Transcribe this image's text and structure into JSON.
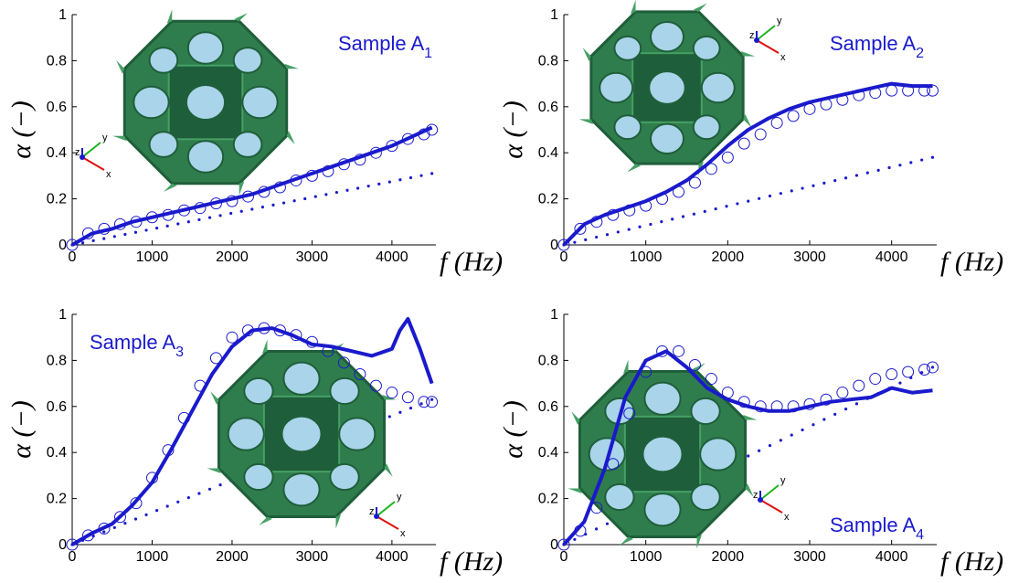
{
  "figure": {
    "x_tick_labels": [
      "0",
      "1000",
      "2000",
      "3000",
      "4000"
    ],
    "y_tick_labels": [
      "0",
      "0.2",
      "0.4",
      "0.6",
      "0.8",
      "1"
    ],
    "ylabel": "α (−)",
    "xlabel": "f (Hz)",
    "triad_labels": {
      "x": "x",
      "y": "y",
      "z": "z"
    }
  },
  "colors": {
    "series": "#1a1acc",
    "shell_dark": "#1f5e3a",
    "shell_mid": "#2f7d4c",
    "shell_light": "#46a064",
    "pores": "#a9d4ea"
  },
  "chart_data": [
    {
      "type": "line",
      "panel": "top-left",
      "sample_label": "Sample A",
      "sample_subscript": "1",
      "xlim": [
        0,
        4550
      ],
      "ylim": [
        0,
        1
      ],
      "grid": false,
      "series": [
        {
          "style": "line",
          "x": [
            0,
            250,
            500,
            750,
            1000,
            1250,
            1500,
            1750,
            2000,
            2250,
            2500,
            2750,
            3000,
            3250,
            3500,
            3750,
            4000,
            4250,
            4500
          ],
          "y": [
            0,
            0.05,
            0.07,
            0.1,
            0.12,
            0.14,
            0.16,
            0.18,
            0.2,
            0.22,
            0.25,
            0.28,
            0.31,
            0.34,
            0.37,
            0.4,
            0.43,
            0.47,
            0.51
          ]
        },
        {
          "style": "circles",
          "x": [
            0,
            200,
            400,
            600,
            800,
            1000,
            1200,
            1400,
            1600,
            1800,
            2000,
            2200,
            2400,
            2600,
            2800,
            3000,
            3200,
            3400,
            3600,
            3800,
            4000,
            4200,
            4400,
            4500
          ],
          "y": [
            0,
            0.05,
            0.07,
            0.09,
            0.1,
            0.12,
            0.13,
            0.15,
            0.16,
            0.18,
            0.19,
            0.21,
            0.23,
            0.25,
            0.28,
            0.3,
            0.32,
            0.35,
            0.37,
            0.4,
            0.43,
            0.46,
            0.48,
            0.5
          ]
        },
        {
          "style": "dots",
          "x": [
            0,
            4500
          ],
          "y": [
            0,
            0.31
          ]
        }
      ]
    },
    {
      "type": "line",
      "panel": "top-right",
      "sample_label": "Sample A",
      "sample_subscript": "2",
      "xlim": [
        0,
        4550
      ],
      "ylim": [
        0,
        1
      ],
      "grid": false,
      "series": [
        {
          "style": "line",
          "x": [
            0,
            250,
            500,
            750,
            1000,
            1250,
            1500,
            1750,
            2000,
            2250,
            2500,
            2750,
            3000,
            3250,
            3500,
            3750,
            4000,
            4250,
            4500
          ],
          "y": [
            0,
            0.09,
            0.13,
            0.16,
            0.19,
            0.23,
            0.28,
            0.35,
            0.43,
            0.5,
            0.55,
            0.59,
            0.62,
            0.64,
            0.66,
            0.68,
            0.7,
            0.69,
            0.69
          ]
        },
        {
          "style": "circles",
          "x": [
            0,
            200,
            400,
            600,
            800,
            1000,
            1200,
            1400,
            1600,
            1800,
            2000,
            2200,
            2400,
            2600,
            2800,
            3000,
            3200,
            3400,
            3600,
            3800,
            4000,
            4200,
            4400,
            4500
          ],
          "y": [
            0,
            0.07,
            0.1,
            0.13,
            0.15,
            0.17,
            0.2,
            0.23,
            0.27,
            0.33,
            0.38,
            0.44,
            0.48,
            0.53,
            0.56,
            0.59,
            0.61,
            0.63,
            0.65,
            0.66,
            0.67,
            0.67,
            0.67,
            0.67
          ]
        },
        {
          "style": "dots",
          "x": [
            0,
            4500
          ],
          "y": [
            0,
            0.38
          ]
        }
      ]
    },
    {
      "type": "line",
      "panel": "bottom-left",
      "sample_label": "Sample A",
      "sample_subscript": "3",
      "xlim": [
        0,
        4550
      ],
      "ylim": [
        0,
        1
      ],
      "grid": false,
      "series": [
        {
          "style": "line",
          "x": [
            0,
            250,
            500,
            750,
            1000,
            1250,
            1500,
            1750,
            2000,
            2250,
            2500,
            2750,
            3000,
            3250,
            3500,
            3750,
            4000,
            4100,
            4200,
            4350,
            4500
          ],
          "y": [
            0,
            0.05,
            0.09,
            0.17,
            0.27,
            0.42,
            0.58,
            0.74,
            0.86,
            0.93,
            0.94,
            0.91,
            0.87,
            0.86,
            0.84,
            0.82,
            0.85,
            0.93,
            0.98,
            0.85,
            0.7
          ]
        },
        {
          "style": "circles",
          "x": [
            0,
            200,
            400,
            600,
            800,
            1000,
            1200,
            1400,
            1600,
            1800,
            2000,
            2200,
            2400,
            2600,
            2800,
            3000,
            3200,
            3400,
            3600,
            3800,
            4000,
            4200,
            4400,
            4500
          ],
          "y": [
            0,
            0.04,
            0.07,
            0.12,
            0.18,
            0.29,
            0.41,
            0.55,
            0.69,
            0.81,
            0.9,
            0.93,
            0.94,
            0.93,
            0.91,
            0.88,
            0.84,
            0.79,
            0.74,
            0.69,
            0.66,
            0.64,
            0.62,
            0.62
          ]
        },
        {
          "style": "dots",
          "x": [
            0,
            4500
          ],
          "y": [
            0,
            0.63
          ]
        }
      ]
    },
    {
      "type": "line",
      "panel": "bottom-right",
      "sample_label": "Sample A",
      "sample_subscript": "4",
      "xlim": [
        0,
        4550
      ],
      "ylim": [
        0,
        1
      ],
      "grid": false,
      "series": [
        {
          "style": "line",
          "x": [
            0,
            250,
            500,
            750,
            1000,
            1250,
            1500,
            1750,
            2000,
            2250,
            2500,
            2750,
            3000,
            3250,
            3500,
            3750,
            4000,
            4250,
            4500
          ],
          "y": [
            0,
            0.1,
            0.33,
            0.64,
            0.8,
            0.84,
            0.77,
            0.68,
            0.63,
            0.6,
            0.58,
            0.58,
            0.6,
            0.62,
            0.63,
            0.64,
            0.68,
            0.66,
            0.67
          ]
        },
        {
          "style": "circles",
          "x": [
            0,
            200,
            400,
            600,
            800,
            1000,
            1200,
            1400,
            1600,
            1800,
            2000,
            2200,
            2400,
            2600,
            2800,
            3000,
            3200,
            3400,
            3600,
            3800,
            4000,
            4200,
            4400,
            4500
          ],
          "y": [
            0,
            0.06,
            0.16,
            0.35,
            0.57,
            0.75,
            0.84,
            0.84,
            0.78,
            0.72,
            0.66,
            0.62,
            0.6,
            0.6,
            0.6,
            0.61,
            0.63,
            0.66,
            0.69,
            0.72,
            0.74,
            0.75,
            0.76,
            0.77
          ]
        },
        {
          "style": "dots",
          "x": [
            0,
            4500
          ],
          "y": [
            0,
            0.77
          ]
        }
      ]
    }
  ]
}
